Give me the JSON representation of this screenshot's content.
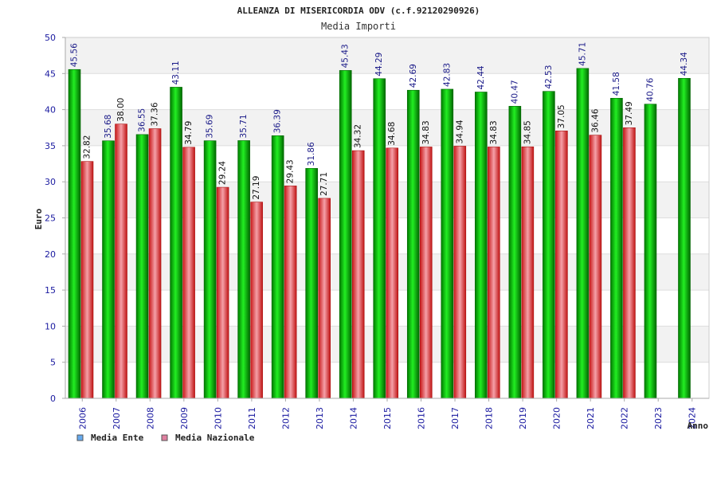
{
  "chart_data": {
    "type": "bar",
    "title": "ALLEANZA DI MISERICORDIA ODV (c.f.92120290926)",
    "subtitle": "Media Importi",
    "xlabel": "Anno",
    "ylabel": "Euro",
    "ylim": [
      0,
      50
    ],
    "yticks": [
      0,
      5,
      10,
      15,
      20,
      25,
      30,
      35,
      40,
      45,
      50
    ],
    "grid": true,
    "legend_position": "bottom-left",
    "categories": [
      "2006",
      "2007",
      "2008",
      "2009",
      "2010",
      "2011",
      "2012",
      "2013",
      "2014",
      "2015",
      "2016",
      "2017",
      "2018",
      "2019",
      "2020",
      "2021",
      "2022",
      "2023",
      "2024"
    ],
    "series": [
      {
        "name": "Media Ente",
        "color": "#00bb00",
        "legend_color": "#66aaee",
        "values": [
          45.56,
          35.68,
          36.55,
          43.11,
          35.69,
          35.71,
          36.39,
          31.86,
          45.43,
          44.29,
          42.69,
          42.83,
          42.44,
          40.47,
          42.53,
          45.71,
          41.58,
          40.76,
          44.34
        ],
        "labels": [
          "45.56",
          "35.68",
          "36.55",
          "43.11",
          "35.69",
          "35.71",
          "36.39",
          "31.86",
          "45.43",
          "44.29",
          "42.69",
          "42.83",
          "42.44",
          "40.47",
          "42.53",
          "45.71",
          "41.58",
          "40.76",
          "44.34"
        ]
      },
      {
        "name": "Media Nazionale",
        "color": "#e03030",
        "legend_color": "#e080a0",
        "values": [
          32.82,
          38.0,
          37.36,
          34.79,
          29.24,
          27.19,
          29.43,
          27.71,
          34.32,
          34.68,
          34.83,
          34.94,
          34.83,
          34.85,
          37.05,
          36.46,
          37.49,
          null,
          null
        ],
        "labels": [
          "32.82",
          "38.00",
          "37.36",
          "34.79",
          "29.24",
          "27.19",
          "29.43",
          "27.71",
          "34.32",
          "34.68",
          "34.83",
          "34.94",
          "34.83",
          "34.85",
          "37.05",
          "36.46",
          "37.49",
          null,
          null
        ]
      }
    ]
  }
}
